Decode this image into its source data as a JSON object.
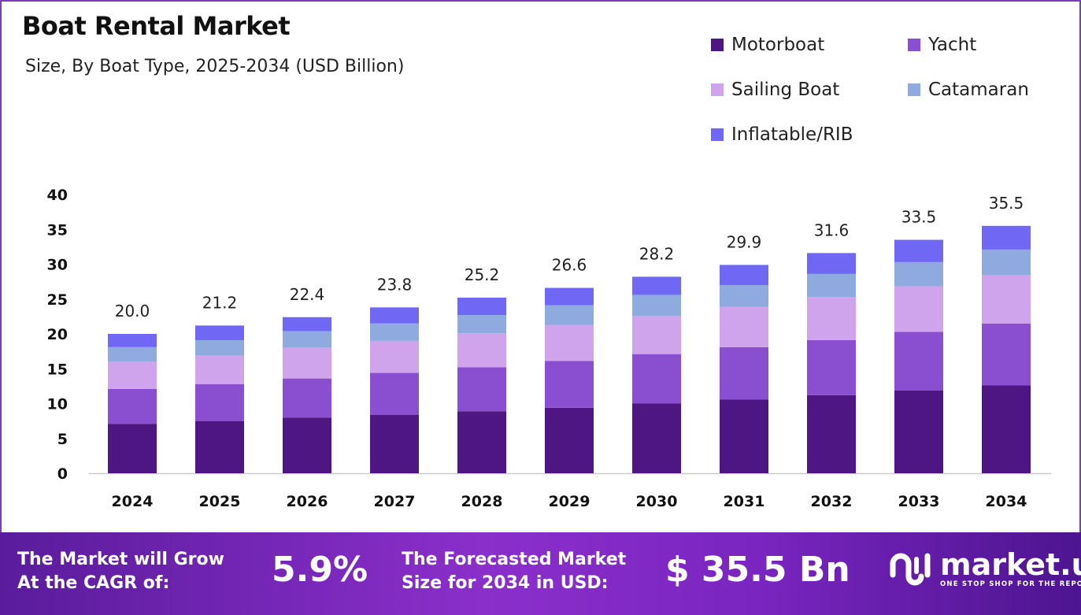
{
  "chart_data": {
    "type": "bar",
    "stacked": true,
    "title": "Boat Rental Market",
    "subtitle": "Size, By Boat Type, 2025-2034 (USD Billion)",
    "xlabel": "",
    "ylabel": "",
    "ylim": [
      0,
      40
    ],
    "yticks": [
      0,
      5,
      10,
      15,
      20,
      25,
      30,
      35,
      40
    ],
    "grid": false,
    "legend_position": "top-right",
    "categories": [
      "2024",
      "2025",
      "2026",
      "2027",
      "2028",
      "2029",
      "2030",
      "2031",
      "2032",
      "2033",
      "2034"
    ],
    "totals": [
      "20.0",
      "21.2",
      "22.4",
      "23.8",
      "25.2",
      "26.6",
      "28.2",
      "29.9",
      "31.6",
      "33.5",
      "35.5"
    ],
    "series": [
      {
        "name": "Motorboat",
        "color": "#4e1683",
        "values": [
          7.1,
          7.5,
          8.0,
          8.4,
          8.9,
          9.4,
          10.0,
          10.6,
          11.2,
          11.9,
          12.6
        ]
      },
      {
        "name": "Yacht",
        "color": "#8a4fd0",
        "values": [
          5.0,
          5.3,
          5.6,
          6.0,
          6.3,
          6.7,
          7.1,
          7.5,
          7.9,
          8.4,
          8.9
        ]
      },
      {
        "name": "Sailing Boat",
        "color": "#d0a4ec",
        "values": [
          3.9,
          4.1,
          4.4,
          4.6,
          4.9,
          5.2,
          5.5,
          5.8,
          6.2,
          6.5,
          6.9
        ]
      },
      {
        "name": "Catamaran",
        "color": "#8faadf",
        "values": [
          2.1,
          2.2,
          2.4,
          2.5,
          2.6,
          2.8,
          3.0,
          3.1,
          3.3,
          3.5,
          3.7
        ]
      },
      {
        "name": "Inflatable/RIB",
        "color": "#7068f5",
        "values": [
          1.9,
          2.1,
          2.0,
          2.3,
          2.5,
          2.5,
          2.6,
          2.9,
          3.0,
          3.2,
          3.4
        ]
      }
    ]
  },
  "footer": {
    "cagr_label_1": "The Market will Grow",
    "cagr_label_2": "At the CAGR of:",
    "cagr_value": "5.9%",
    "forecast_label_1": "The Forecasted Market",
    "forecast_label_2": "Size for 2034 in USD:",
    "forecast_value": "$ 35.5 Bn",
    "logo_name": "market.us",
    "logo_tagline": "ONE STOP SHOP FOR THE REPORTS"
  }
}
